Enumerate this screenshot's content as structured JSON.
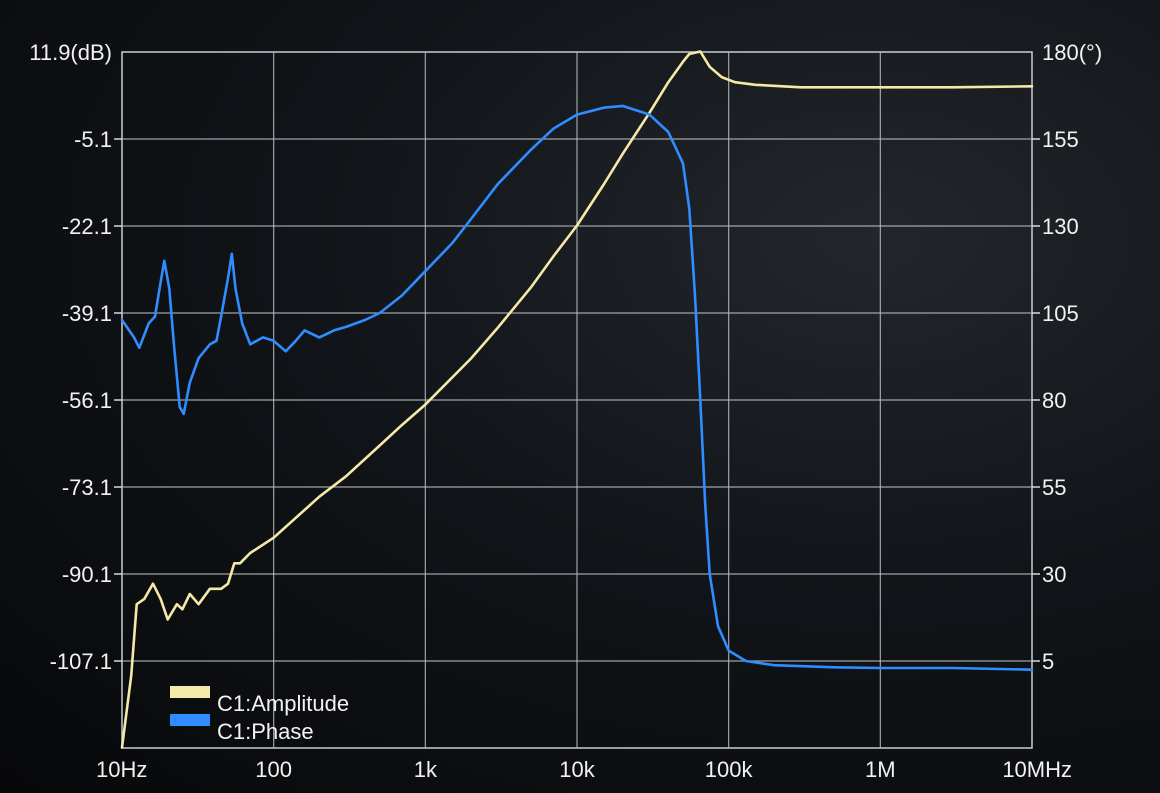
{
  "chart_data": {
    "type": "line",
    "title": "",
    "x_scale": "log",
    "xlim": [
      10,
      10000000
    ],
    "x_ticks": [
      10,
      100,
      1000,
      10000,
      100000,
      1000000,
      10000000
    ],
    "x_tick_labels": [
      "10Hz",
      "100",
      "1k",
      "10k",
      "100k",
      "1M",
      "10MHz"
    ],
    "left_axis": {
      "ylim": [
        -124.1,
        11.9
      ],
      "ticks": [
        11.9,
        -5.1,
        -22.1,
        -39.1,
        -56.1,
        -73.1,
        -90.1,
        -107.1
      ],
      "tick_labels": [
        "11.9(dB)",
        "-5.1",
        "-22.1",
        "-39.1",
        "-56.1",
        "-73.1",
        "-90.1",
        "-107.1"
      ]
    },
    "right_axis": {
      "ylim": [
        -20,
        180
      ],
      "ticks": [
        180,
        155,
        130,
        105,
        80,
        55,
        30,
        5
      ],
      "tick_labels": [
        "180(°)",
        "155",
        "130",
        "105",
        "80",
        "55",
        "30",
        "5"
      ]
    },
    "grid": true,
    "legend_position": "bottom-left",
    "series": [
      {
        "name": "C1:Amplitude",
        "axis": "left",
        "color": "#f5e9a8",
        "points": [
          [
            10,
            -124
          ],
          [
            11.5,
            -110
          ],
          [
            12.5,
            -96
          ],
          [
            14,
            -95
          ],
          [
            16,
            -92
          ],
          [
            18,
            -95
          ],
          [
            20,
            -99
          ],
          [
            23,
            -96
          ],
          [
            25,
            -97
          ],
          [
            28,
            -94
          ],
          [
            32,
            -96
          ],
          [
            38,
            -93
          ],
          [
            45,
            -93
          ],
          [
            50,
            -92
          ],
          [
            55,
            -88
          ],
          [
            60,
            -88
          ],
          [
            70,
            -86
          ],
          [
            100,
            -83
          ],
          [
            200,
            -75
          ],
          [
            300,
            -71
          ],
          [
            500,
            -65
          ],
          [
            700,
            -61
          ],
          [
            1000,
            -57
          ],
          [
            2000,
            -48
          ],
          [
            3000,
            -42
          ],
          [
            5000,
            -34
          ],
          [
            7000,
            -28
          ],
          [
            10000,
            -22
          ],
          [
            15000,
            -14
          ],
          [
            20000,
            -8
          ],
          [
            30000,
            0
          ],
          [
            40000,
            6
          ],
          [
            50000,
            10
          ],
          [
            55000,
            11.5
          ],
          [
            65000,
            12
          ],
          [
            75000,
            9
          ],
          [
            90000,
            7
          ],
          [
            110000,
            6
          ],
          [
            150000,
            5.5
          ],
          [
            300000,
            5
          ],
          [
            1000000,
            5
          ],
          [
            3000000,
            5
          ],
          [
            10000000,
            5.2
          ]
        ]
      },
      {
        "name": "C1:Phase",
        "axis": "right",
        "color": "#2f8dff",
        "points": [
          [
            10,
            103
          ],
          [
            12,
            98
          ],
          [
            13,
            95
          ],
          [
            15,
            102
          ],
          [
            16.5,
            104
          ],
          [
            18,
            114
          ],
          [
            19,
            120
          ],
          [
            20.5,
            112
          ],
          [
            22,
            96
          ],
          [
            24,
            78
          ],
          [
            25.5,
            76
          ],
          [
            28,
            85
          ],
          [
            32,
            92
          ],
          [
            38,
            96
          ],
          [
            42,
            97
          ],
          [
            45,
            104
          ],
          [
            50,
            115
          ],
          [
            53,
            122
          ],
          [
            56,
            112
          ],
          [
            62,
            102
          ],
          [
            70,
            96
          ],
          [
            85,
            98
          ],
          [
            100,
            97
          ],
          [
            120,
            94
          ],
          [
            140,
            97
          ],
          [
            160,
            100
          ],
          [
            200,
            98
          ],
          [
            250,
            100
          ],
          [
            300,
            101
          ],
          [
            400,
            103
          ],
          [
            500,
            105
          ],
          [
            700,
            110
          ],
          [
            1000,
            117
          ],
          [
            1500,
            125
          ],
          [
            2000,
            132
          ],
          [
            3000,
            142
          ],
          [
            5000,
            152
          ],
          [
            7000,
            158
          ],
          [
            10000,
            162
          ],
          [
            15000,
            164
          ],
          [
            20000,
            164.5
          ],
          [
            30000,
            162
          ],
          [
            40000,
            157
          ],
          [
            50000,
            148
          ],
          [
            55000,
            135
          ],
          [
            60000,
            110
          ],
          [
            65000,
            80
          ],
          [
            70000,
            50
          ],
          [
            75000,
            30
          ],
          [
            85000,
            15
          ],
          [
            100000,
            8
          ],
          [
            130000,
            5
          ],
          [
            200000,
            3.8
          ],
          [
            500000,
            3.2
          ],
          [
            1000000,
            3
          ],
          [
            3000000,
            3
          ],
          [
            10000000,
            2.5
          ]
        ]
      }
    ]
  }
}
